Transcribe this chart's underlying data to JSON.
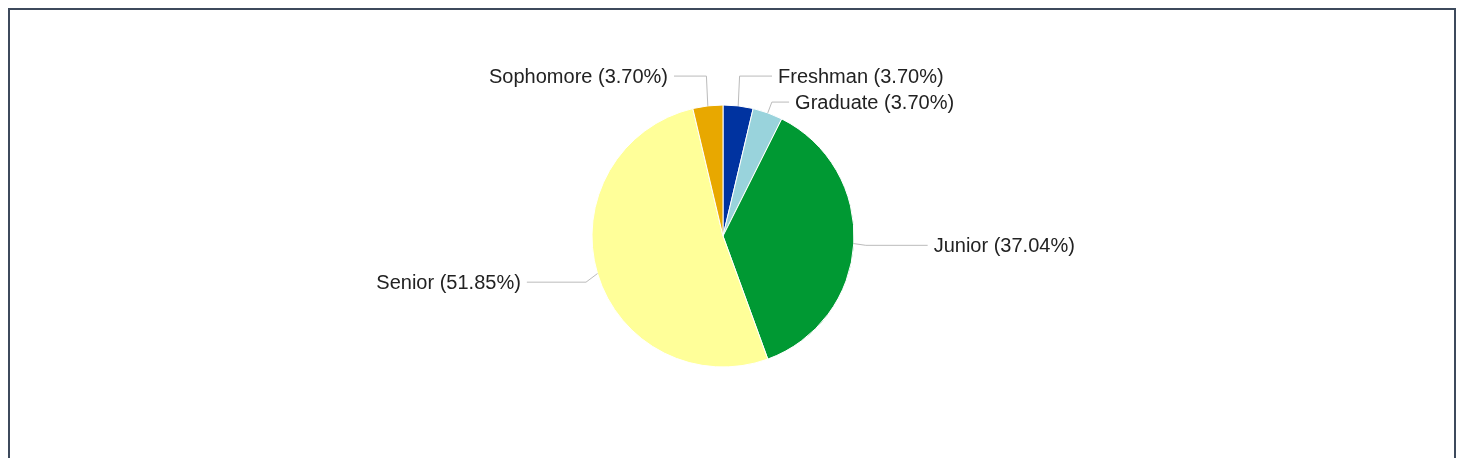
{
  "chart_data": {
    "type": "pie",
    "categories": [
      "Freshman",
      "Graduate",
      "Junior",
      "Senior",
      "Sophomore"
    ],
    "values": [
      3.7,
      3.7,
      37.04,
      51.85,
      3.7
    ],
    "value_labels": [
      "(3.70%)",
      "(3.70%)",
      "(37.04%)",
      "(51.85%)",
      "(3.70%)"
    ],
    "colors": [
      "#0033a0",
      "#99d3dc",
      "#009933",
      "#ffff99",
      "#e8a800"
    ],
    "data_labels": true
  }
}
